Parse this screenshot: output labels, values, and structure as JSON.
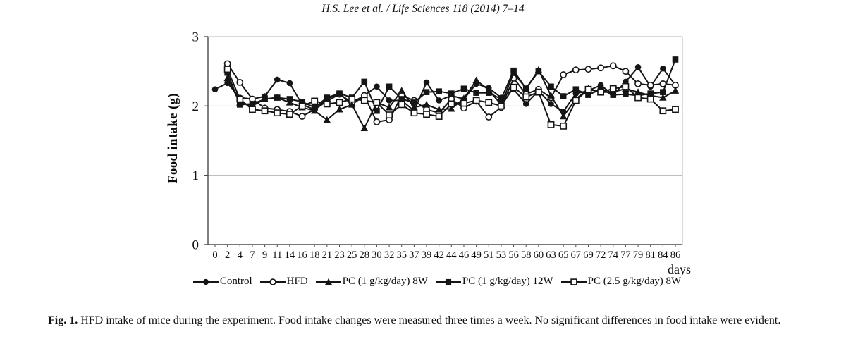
{
  "page": {
    "header": "H.S. Lee et al. / Life Sciences 118 (2014) 7–14",
    "caption_label": "Fig. 1.",
    "caption_text": " HFD intake of mice during the experiment. Food intake changes were measured three times a week. No significant differences in food intake were evident."
  },
  "colors": {
    "series": "#151515",
    "grid": "#b4b4b4",
    "axis": "#4a4a4a",
    "text": "#101010"
  },
  "chart_data": {
    "type": "line",
    "title": "",
    "xlabel": "days",
    "ylabel": "Food intake (g)",
    "ylim": [
      0,
      3
    ],
    "yticks": [
      0,
      1,
      2,
      3
    ],
    "grid": "horizontal-only",
    "legend_position": "bottom",
    "x_tick_labels": [
      "0",
      "2",
      "4",
      "7",
      "9",
      "11",
      "14",
      "16",
      "18",
      "21",
      "23",
      "25",
      "28",
      "30",
      "32",
      "35",
      "37",
      "39",
      "42",
      "44",
      "46",
      "49",
      "51",
      "53",
      "56",
      "58",
      "60",
      "63",
      "65",
      "67",
      "69",
      "72",
      "74",
      "77",
      "79",
      "81",
      "84",
      "86"
    ],
    "series": [
      {
        "name": "Control",
        "marker": "filled-circle",
        "values": [
          2.24,
          2.33,
          2.12,
          2.1,
          2.14,
          2.38,
          2.33,
          2.02,
          1.95,
          2.1,
          2.18,
          2.02,
          2.15,
          2.28,
          2.08,
          2.08,
          1.93,
          2.34,
          2.08,
          2.15,
          2.1,
          2.32,
          2.26,
          2.12,
          2.24,
          2.03,
          2.22,
          2.03,
          1.92,
          2.18,
          2.22,
          2.3,
          2.16,
          2.35,
          2.56,
          2.28,
          2.54,
          2.3
        ]
      },
      {
        "name": "HFD",
        "marker": "open-circle",
        "values": [
          null,
          2.61,
          2.34,
          2.1,
          1.97,
          1.95,
          1.92,
          1.85,
          1.95,
          2.07,
          2.17,
          2.05,
          2.15,
          1.77,
          1.8,
          2.15,
          2.08,
          1.95,
          1.9,
          2.1,
          1.97,
          2.07,
          1.84,
          1.98,
          2.4,
          2.17,
          2.24,
          2.12,
          2.45,
          2.52,
          2.53,
          2.55,
          2.58,
          2.5,
          2.32,
          2.3,
          2.32,
          2.3
        ]
      },
      {
        "name": "PC (1 g/kg/day) 8W",
        "marker": "filled-triangle",
        "values": [
          null,
          2.4,
          2.05,
          2.0,
          2.1,
          2.12,
          2.05,
          1.98,
          1.93,
          1.8,
          1.95,
          2.02,
          1.68,
          2.05,
          1.98,
          2.22,
          1.98,
          2.02,
          1.95,
          1.96,
          2.11,
          2.37,
          2.23,
          2.02,
          2.48,
          2.25,
          2.52,
          2.15,
          1.85,
          2.1,
          2.25,
          2.2,
          2.2,
          2.25,
          2.2,
          2.15,
          2.12,
          2.22
        ]
      },
      {
        "name": "PC (1 g/kg/day) 12W",
        "marker": "filled-square",
        "values": [
          null,
          2.48,
          2.02,
          2.03,
          2.1,
          2.12,
          2.1,
          2.06,
          1.98,
          2.12,
          2.18,
          2.12,
          2.35,
          1.93,
          2.28,
          2.1,
          2.05,
          2.2,
          2.21,
          2.18,
          2.25,
          2.19,
          2.19,
          2.1,
          2.51,
          2.25,
          2.5,
          2.28,
          2.14,
          2.24,
          2.16,
          2.24,
          2.16,
          2.17,
          2.15,
          2.18,
          2.2,
          2.67
        ]
      },
      {
        "name": "PC (2.5 g/kg/day) 8W",
        "marker": "open-square",
        "values": [
          null,
          2.53,
          2.1,
          1.95,
          1.93,
          1.9,
          1.88,
          2.0,
          2.07,
          2.03,
          2.05,
          2.1,
          2.08,
          2.05,
          1.87,
          2.02,
          1.9,
          1.88,
          1.85,
          2.03,
          2.04,
          2.08,
          2.05,
          2.0,
          2.27,
          2.13,
          2.2,
          1.73,
          1.71,
          2.08,
          2.24,
          2.2,
          2.25,
          2.28,
          2.12,
          2.1,
          1.93,
          1.95
        ]
      }
    ]
  }
}
